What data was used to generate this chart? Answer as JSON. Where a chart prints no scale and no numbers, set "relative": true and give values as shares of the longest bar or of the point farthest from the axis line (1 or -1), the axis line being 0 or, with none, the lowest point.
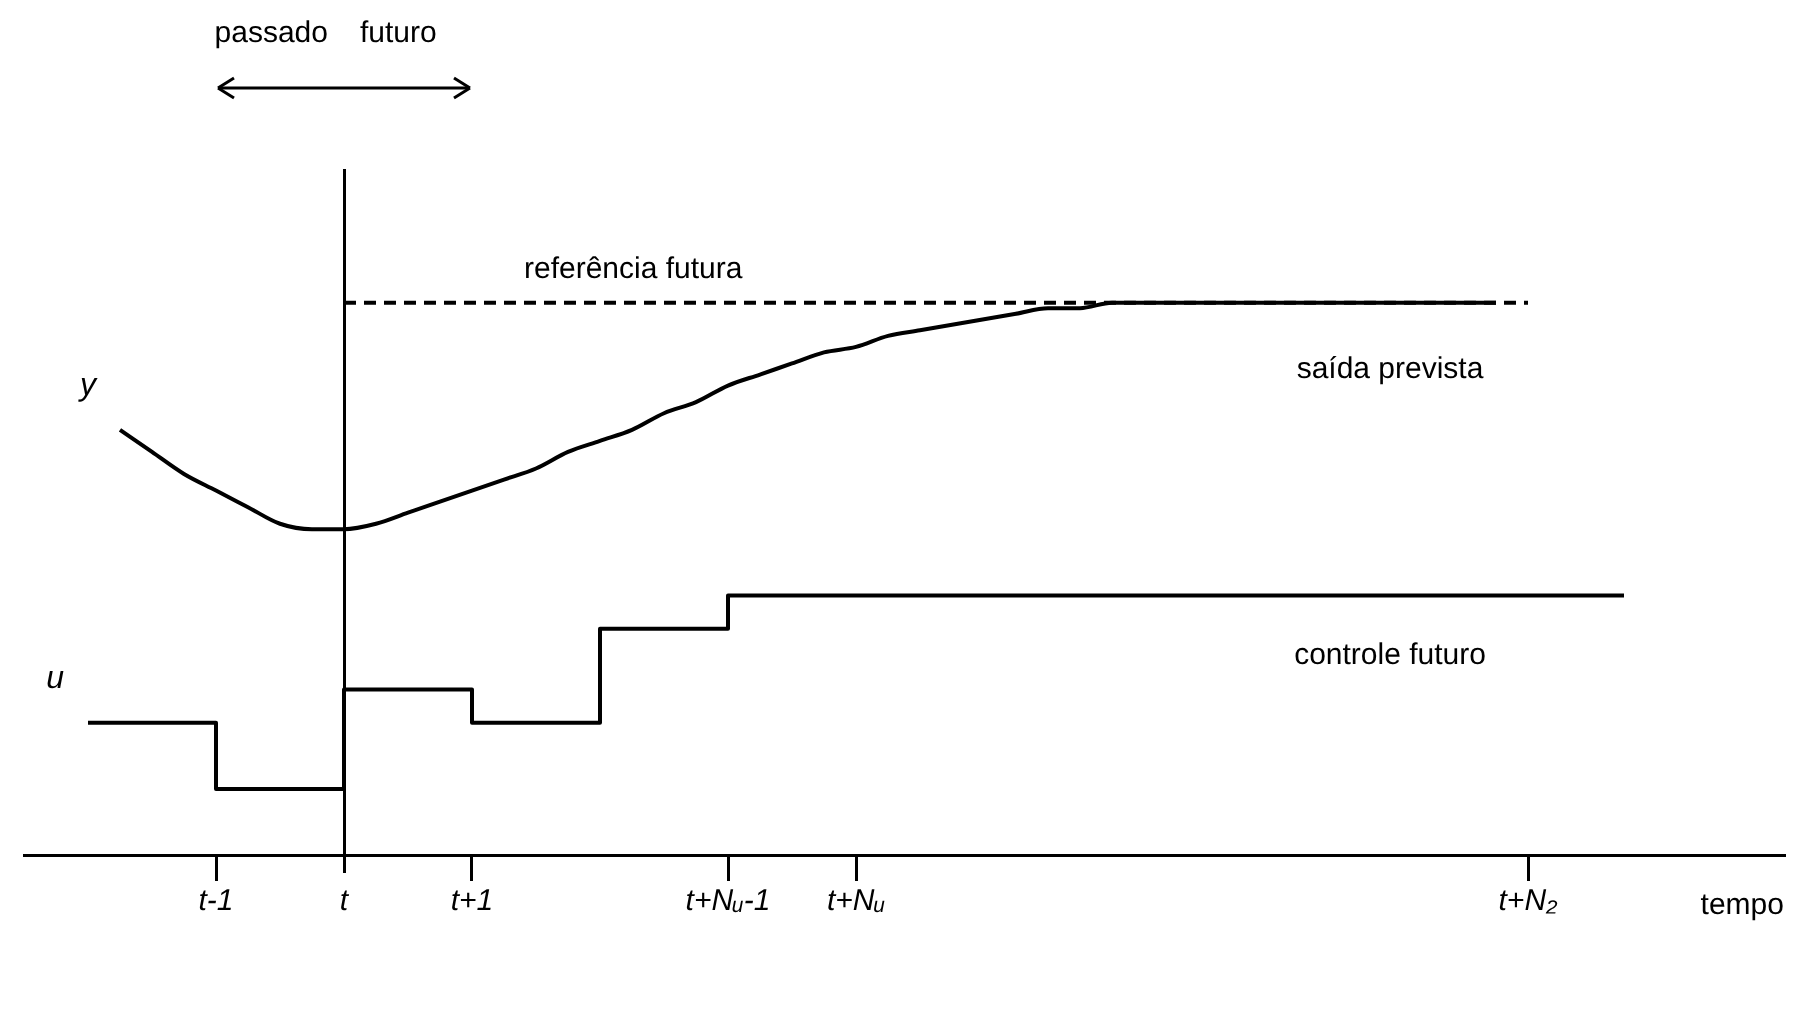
{
  "chart_data": {
    "type": "line",
    "relative": true,
    "xlabel": "tempo",
    "categories": [
      null,
      null,
      null,
      null,
      null,
      null,
      "t-1",
      null,
      null,
      null,
      "t",
      null,
      null,
      null,
      "t+1",
      null,
      null,
      null,
      null,
      null,
      null,
      null,
      "t+Nᵤ-1",
      null,
      null,
      null,
      "t+Nᵤ",
      null,
      null,
      null,
      null,
      null,
      null,
      null,
      null,
      null,
      null,
      null,
      null,
      null,
      null,
      null,
      null,
      null,
      null,
      null,
      null,
      "t+N₂",
      null,
      null,
      null,
      null,
      null,
      null,
      null,
      null
    ],
    "grid": false,
    "legend": false,
    "marker": "none",
    "series": [
      {
        "name": "y",
        "type": "line",
        "color": "#000000",
        "values": [
          null,
          null,
          null,
          0.77,
          0.73,
          0.69,
          0.66,
          0.63,
          0.6,
          0.59,
          0.59,
          0.6,
          0.62,
          0.64,
          0.66,
          0.68,
          0.7,
          0.73,
          0.75,
          0.77,
          0.8,
          0.82,
          0.85,
          0.87,
          0.89,
          0.91,
          0.92,
          0.94,
          0.95,
          0.96,
          0.97,
          0.98,
          0.99,
          0.99,
          1,
          1,
          1,
          1,
          1,
          1,
          1,
          1,
          1,
          1,
          1,
          1,
          1,
          null,
          null,
          null,
          null,
          null,
          null,
          null,
          null,
          null
        ]
      },
      {
        "type": "line",
        "line_style": "dashed",
        "color": "#000000",
        "values": [
          null,
          null,
          null,
          null,
          null,
          null,
          null,
          null,
          null,
          null,
          1,
          1,
          1,
          1,
          1,
          1,
          1,
          1,
          1,
          1,
          1,
          1,
          1,
          1,
          1,
          1,
          1,
          1,
          1,
          1,
          1,
          1,
          1,
          1,
          1,
          1,
          1,
          1,
          1,
          1,
          1,
          1,
          1,
          1,
          1,
          1,
          1,
          1,
          null,
          null,
          null,
          null,
          null,
          null,
          null,
          null
        ]
      },
      {
        "name": "u",
        "type": "step",
        "color": "#000000",
        "values": [
          null,
          null,
          0.24,
          0.24,
          0.24,
          0.24,
          0.12,
          0.12,
          0.12,
          0.12,
          0.3,
          0.3,
          0.3,
          0.3,
          0.24,
          0.24,
          0.24,
          0.24,
          0.41,
          0.41,
          0.41,
          0.41,
          0.47,
          0.47,
          0.47,
          0.47,
          0.47,
          0.47,
          0.47,
          0.47,
          0.47,
          0.47,
          0.47,
          0.47,
          0.47,
          0.47,
          0.47,
          0.47,
          0.47,
          0.47,
          0.47,
          0.47,
          0.47,
          0.47,
          0.47,
          0.47,
          0.47,
          0.47,
          0.47,
          0.47,
          0.47,
          null,
          null,
          null,
          null,
          null
        ]
      }
    ],
    "annotations": [
      "passado",
      "futuro",
      "referência futura",
      "saída prevista",
      "controle futuro"
    ]
  }
}
